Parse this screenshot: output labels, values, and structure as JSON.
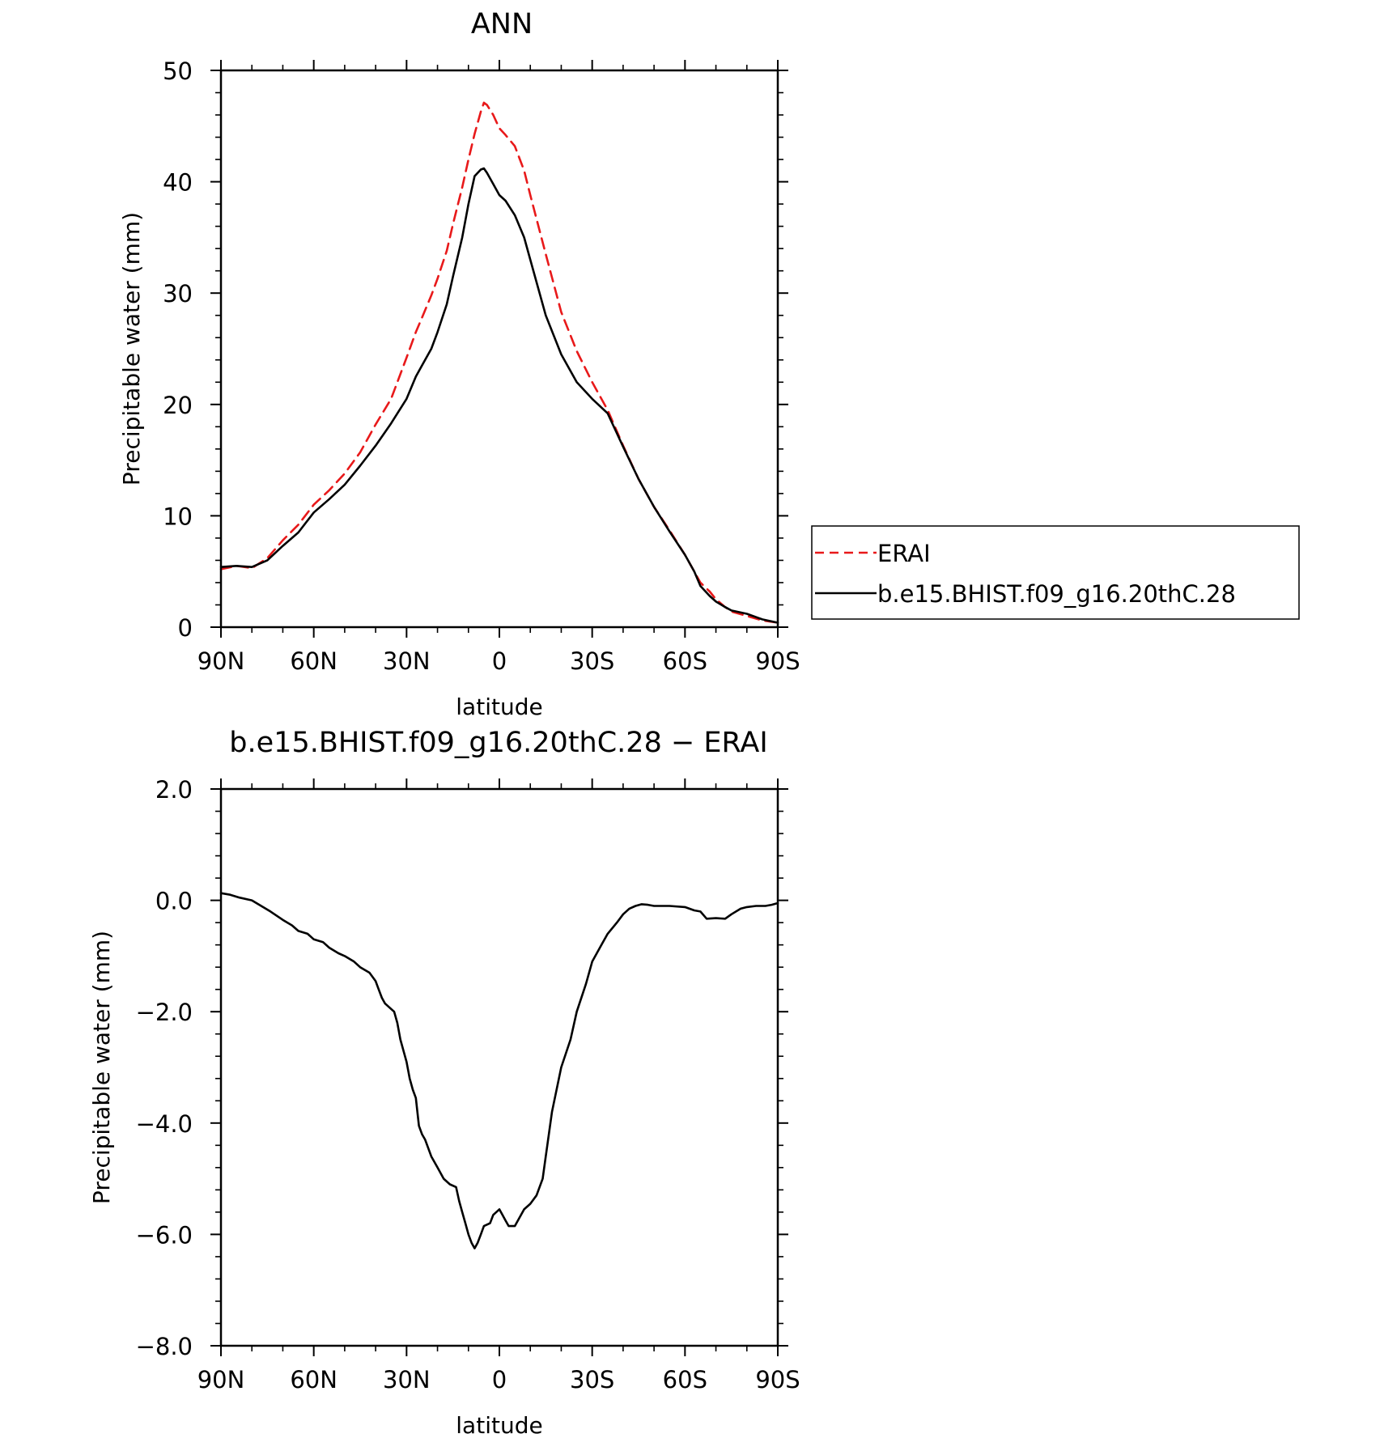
{
  "chart_data": [
    {
      "type": "line",
      "title": "ANN",
      "xlabel": "latitude",
      "ylabel": "Precipitable water (mm)",
      "xlim": [
        90,
        -90
      ],
      "ylim": [
        0,
        50
      ],
      "x_ticks": [
        {
          "value": 90,
          "label": "90N"
        },
        {
          "value": 60,
          "label": "60N"
        },
        {
          "value": 30,
          "label": "30N"
        },
        {
          "value": 0,
          "label": "0"
        },
        {
          "value": -30,
          "label": "30S"
        },
        {
          "value": -60,
          "label": "60S"
        },
        {
          "value": -90,
          "label": "90S"
        }
      ],
      "y_ticks": [
        {
          "value": 0,
          "label": "0"
        },
        {
          "value": 10,
          "label": "10"
        },
        {
          "value": 20,
          "label": "20"
        },
        {
          "value": 30,
          "label": "30"
        },
        {
          "value": 40,
          "label": "40"
        },
        {
          "value": 50,
          "label": "50"
        }
      ],
      "legend_position": "right",
      "series": [
        {
          "name": "ERAI",
          "color": "#e8191a",
          "style": "dashed",
          "x": [
            90,
            85,
            80,
            75,
            70,
            65,
            60,
            55,
            50,
            45,
            40,
            35,
            30,
            27,
            25,
            22,
            20,
            17,
            15,
            12,
            10,
            8,
            6,
            5,
            4,
            2,
            0,
            -2,
            -5,
            -8,
            -10,
            -15,
            -20,
            -25,
            -30,
            -35,
            -40,
            -45,
            -50,
            -55,
            -60,
            -63,
            -65,
            -68,
            -70,
            -73,
            -75,
            -80,
            -85,
            -90
          ],
          "values": [
            5.2,
            5.5,
            5.3,
            6.2,
            7.8,
            9.2,
            11.0,
            12.3,
            13.8,
            15.7,
            18.2,
            20.5,
            24.2,
            26.5,
            27.8,
            29.8,
            31.3,
            33.8,
            36.2,
            39.5,
            42.0,
            44.3,
            46.3,
            47.1,
            46.9,
            46.0,
            44.8,
            44.2,
            43.2,
            41.0,
            38.8,
            33.5,
            28.3,
            24.8,
            22.0,
            19.5,
            16.3,
            13.3,
            10.8,
            8.7,
            6.5,
            5.0,
            4.0,
            3.2,
            2.5,
            1.8,
            1.4,
            1.0,
            0.6,
            0.4
          ]
        },
        {
          "name": "b.e15.BHIST.f09_g16.20thC.28",
          "color": "#000000",
          "style": "solid",
          "x": [
            90,
            85,
            80,
            75,
            70,
            65,
            60,
            55,
            50,
            45,
            40,
            35,
            30,
            27,
            25,
            22,
            20,
            17,
            15,
            12,
            10,
            8,
            6,
            5,
            4,
            2,
            0,
            -2,
            -5,
            -8,
            -10,
            -15,
            -20,
            -25,
            -30,
            -35,
            -40,
            -45,
            -50,
            -55,
            -60,
            -63,
            -65,
            -68,
            -70,
            -73,
            -75,
            -80,
            -85,
            -90
          ],
          "values": [
            5.4,
            5.5,
            5.4,
            6.0,
            7.3,
            8.5,
            10.3,
            11.5,
            12.8,
            14.5,
            16.3,
            18.3,
            20.5,
            22.5,
            23.5,
            25.0,
            26.5,
            29.0,
            31.5,
            35.0,
            38.0,
            40.5,
            41.1,
            41.2,
            40.8,
            39.8,
            38.8,
            38.3,
            37.0,
            35.0,
            33.0,
            28.0,
            24.5,
            22.0,
            20.5,
            19.2,
            16.2,
            13.3,
            10.8,
            8.6,
            6.5,
            5.0,
            3.7,
            2.8,
            2.3,
            1.8,
            1.5,
            1.2,
            0.7,
            0.4
          ]
        }
      ]
    },
    {
      "type": "line",
      "title": "b.e15.BHIST.f09_g16.20thC.28 − ERAI",
      "xlabel": "latitude",
      "ylabel": "Precipitable water (mm)",
      "xlim": [
        90,
        -90
      ],
      "ylim": [
        -8,
        2
      ],
      "x_ticks": [
        {
          "value": 90,
          "label": "90N"
        },
        {
          "value": 60,
          "label": "60N"
        },
        {
          "value": 30,
          "label": "30N"
        },
        {
          "value": 0,
          "label": "0"
        },
        {
          "value": -30,
          "label": "30S"
        },
        {
          "value": -60,
          "label": "60S"
        },
        {
          "value": -90,
          "label": "90S"
        }
      ],
      "y_ticks": [
        {
          "value": 2,
          "label": "2.0"
        },
        {
          "value": 0,
          "label": "0.0"
        },
        {
          "value": -2,
          "label": "−2.0"
        },
        {
          "value": -4,
          "label": "−4.0"
        },
        {
          "value": -6,
          "label": "−6.0"
        },
        {
          "value": -8,
          "label": "−8.0"
        }
      ],
      "series": [
        {
          "color": "#000000",
          "style": "solid",
          "x": [
            90,
            87,
            84,
            80,
            77,
            74,
            70,
            67,
            65,
            62,
            60,
            57,
            55,
            52,
            50,
            47,
            45,
            42,
            40,
            39,
            38,
            37,
            35,
            34,
            33,
            32,
            30,
            29,
            28,
            27,
            26,
            25,
            24,
            22,
            20,
            18,
            16,
            14,
            13,
            12,
            11,
            10,
            9,
            8,
            7,
            6,
            5,
            3,
            2,
            0,
            -1,
            -2,
            -3,
            -5,
            -6,
            -8,
            -10,
            -12,
            -14,
            -15,
            -17,
            -20,
            -23,
            -25,
            -28,
            -30,
            -33,
            -35,
            -38,
            -40,
            -42,
            -44,
            -46,
            -48,
            -50,
            -52,
            -55,
            -60,
            -63,
            -65,
            -67,
            -70,
            -73,
            -75,
            -78,
            -80,
            -83,
            -86,
            -88,
            -90
          ],
          "values": [
            0.13,
            0.1,
            0.05,
            0.0,
            -0.1,
            -0.2,
            -0.35,
            -0.45,
            -0.55,
            -0.6,
            -0.7,
            -0.75,
            -0.85,
            -0.95,
            -1.0,
            -1.1,
            -1.2,
            -1.3,
            -1.45,
            -1.6,
            -1.75,
            -1.85,
            -1.95,
            -2.0,
            -2.2,
            -2.5,
            -2.9,
            -3.2,
            -3.4,
            -3.55,
            -4.05,
            -4.2,
            -4.3,
            -4.6,
            -4.8,
            -5.0,
            -5.1,
            -5.15,
            -5.4,
            -5.6,
            -5.8,
            -6.0,
            -6.15,
            -6.25,
            -6.15,
            -6.0,
            -5.85,
            -5.8,
            -5.65,
            -5.55,
            -5.65,
            -5.75,
            -5.85,
            -5.85,
            -5.75,
            -5.55,
            -5.45,
            -5.3,
            -5.0,
            -4.6,
            -3.8,
            -3.0,
            -2.5,
            -2.0,
            -1.5,
            -1.1,
            -0.8,
            -0.6,
            -0.4,
            -0.25,
            -0.15,
            -0.1,
            -0.07,
            -0.08,
            -0.1,
            -0.1,
            -0.1,
            -0.12,
            -0.18,
            -0.2,
            -0.33,
            -0.32,
            -0.33,
            -0.25,
            -0.15,
            -0.12,
            -0.1,
            -0.1,
            -0.08,
            -0.05
          ]
        }
      ]
    }
  ]
}
